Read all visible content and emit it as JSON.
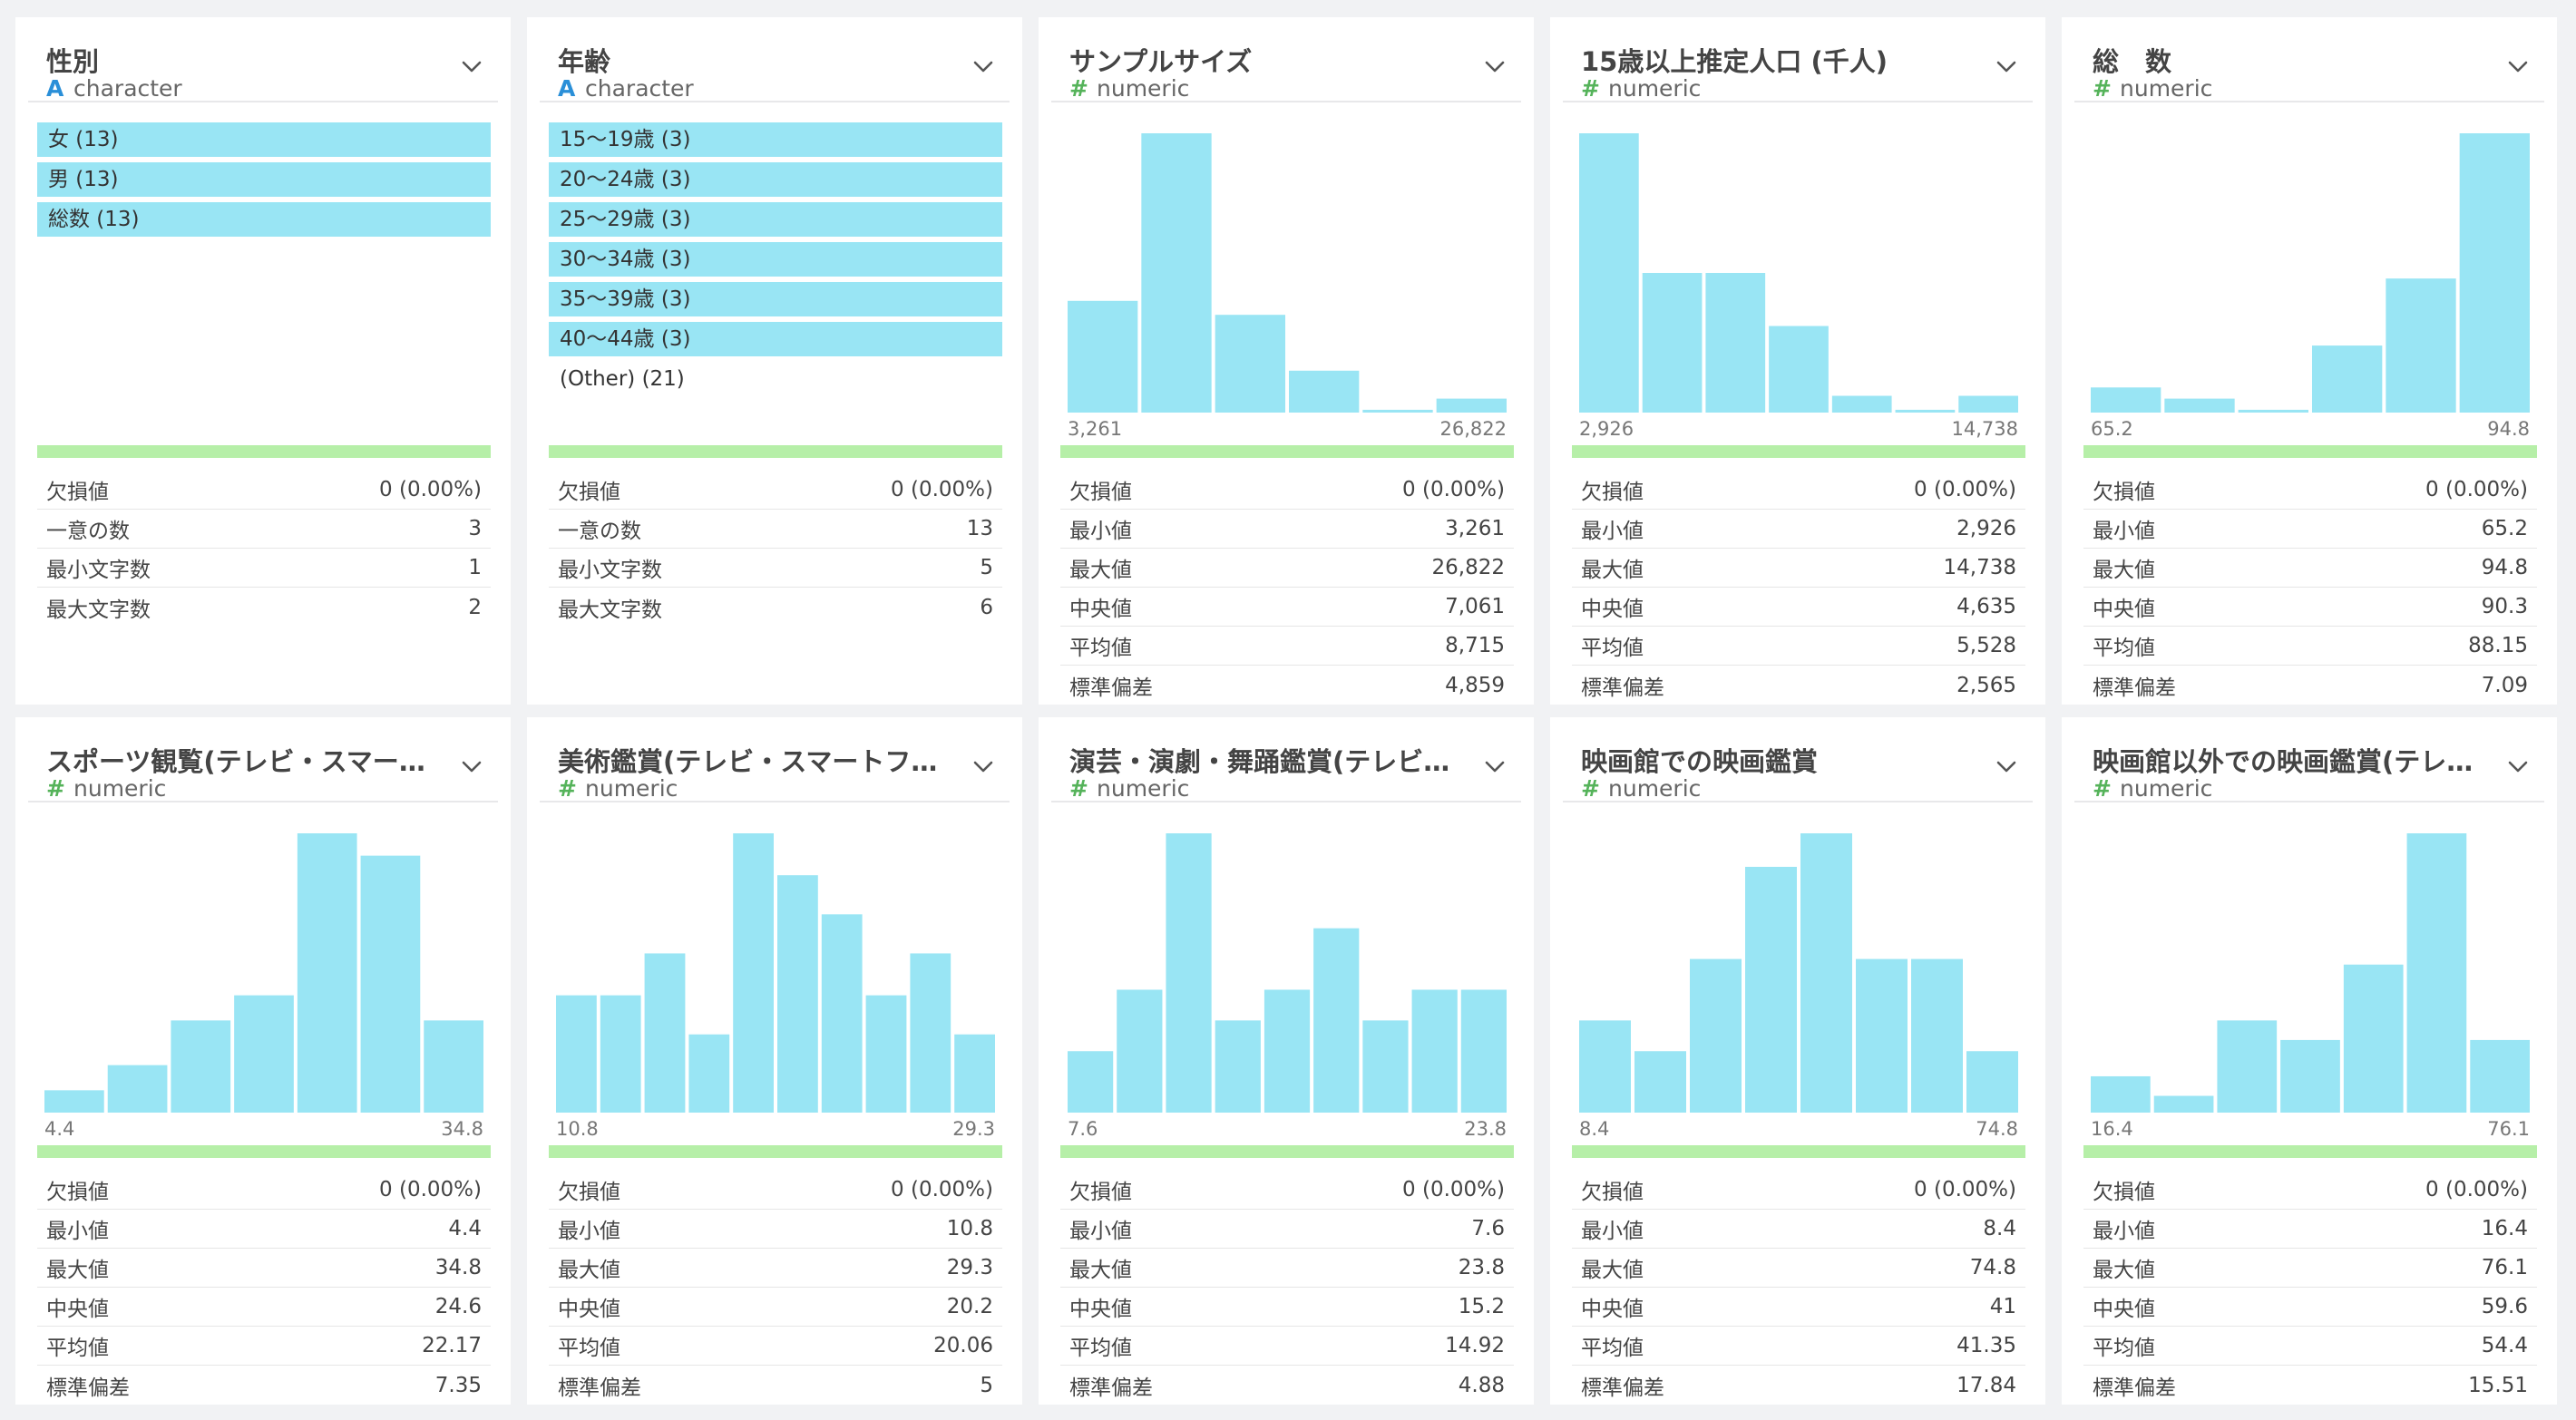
{
  "stat_labels": {
    "missing": "欠損値",
    "unique": "一意の数",
    "min_len": "最小文字数",
    "max_len": "最大文字数",
    "min": "最小値",
    "max": "最大値",
    "median": "中央値",
    "mean": "平均値",
    "stdev": "標準偏差"
  },
  "colors": {
    "bar": "#99e5f4",
    "valid": "#b6efa8",
    "char_icon": "#2a8fd8",
    "num_icon": "#55b35a"
  },
  "columns": [
    {
      "title": "性別",
      "type": "character",
      "type_icon": "A",
      "categories": [
        {
          "label": "女 (13)",
          "highlighted": true
        },
        {
          "label": "男 (13)",
          "highlighted": true
        },
        {
          "label": "総数 (13)",
          "highlighted": true
        }
      ],
      "stats": [
        [
          "missing",
          "0 (0.00%)"
        ],
        [
          "unique",
          "3"
        ],
        [
          "min_len",
          "1"
        ],
        [
          "max_len",
          "2"
        ]
      ]
    },
    {
      "title": "年齢",
      "type": "character",
      "type_icon": "A",
      "categories": [
        {
          "label": "15〜19歳 (3)",
          "highlighted": true
        },
        {
          "label": "20〜24歳 (3)",
          "highlighted": true
        },
        {
          "label": "25〜29歳 (3)",
          "highlighted": true
        },
        {
          "label": "30〜34歳 (3)",
          "highlighted": true
        },
        {
          "label": "35〜39歳 (3)",
          "highlighted": true
        },
        {
          "label": "40〜44歳 (3)",
          "highlighted": true
        },
        {
          "label": "(Other) (21)",
          "highlighted": false
        }
      ],
      "stats": [
        [
          "missing",
          "0 (0.00%)"
        ],
        [
          "unique",
          "13"
        ],
        [
          "min_len",
          "5"
        ],
        [
          "max_len",
          "6"
        ]
      ]
    },
    {
      "title": "サンプルサイズ",
      "type": "numeric",
      "type_icon": "#",
      "hist": [
        40,
        100,
        35,
        15,
        1,
        5
      ],
      "hist_min": "3,261",
      "hist_max": "26,822",
      "stats": [
        [
          "missing",
          "0 (0.00%)"
        ],
        [
          "min",
          "3,261"
        ],
        [
          "max",
          "26,822"
        ],
        [
          "median",
          "7,061"
        ],
        [
          "mean",
          "8,715"
        ],
        [
          "stdev",
          "4,859"
        ]
      ]
    },
    {
      "title": "15歳以上推定人口 (千人)",
      "type": "numeric",
      "type_icon": "#",
      "hist": [
        100,
        50,
        50,
        31,
        6,
        1,
        6
      ],
      "hist_min": "2,926",
      "hist_max": "14,738",
      "stats": [
        [
          "missing",
          "0 (0.00%)"
        ],
        [
          "min",
          "2,926"
        ],
        [
          "max",
          "14,738"
        ],
        [
          "median",
          "4,635"
        ],
        [
          "mean",
          "5,528"
        ],
        [
          "stdev",
          "2,565"
        ]
      ]
    },
    {
      "title": "総　数",
      "type": "numeric",
      "type_icon": "#",
      "hist": [
        9,
        5,
        1,
        24,
        48,
        100
      ],
      "hist_min": "65.2",
      "hist_max": "94.8",
      "stats": [
        [
          "missing",
          "0 (0.00%)"
        ],
        [
          "min",
          "65.2"
        ],
        [
          "max",
          "94.8"
        ],
        [
          "median",
          "90.3"
        ],
        [
          "mean",
          "88.15"
        ],
        [
          "stdev",
          "7.09"
        ]
      ]
    },
    {
      "title": "スポーツ観覧(テレビ・スマートフォン・パソコンなどは除く)",
      "type": "numeric",
      "type_icon": "#",
      "hist": [
        8,
        17,
        33,
        42,
        100,
        92,
        33
      ],
      "hist_min": "4.4",
      "hist_max": "34.8",
      "stats": [
        [
          "missing",
          "0 (0.00%)"
        ],
        [
          "min",
          "4.4"
        ],
        [
          "max",
          "34.8"
        ],
        [
          "median",
          "24.6"
        ],
        [
          "mean",
          "22.17"
        ],
        [
          "stdev",
          "7.35"
        ]
      ]
    },
    {
      "title": "美術鑑賞(テレビ・スマートフォン・パソコンなどは除く)",
      "type": "numeric",
      "type_icon": "#",
      "hist": [
        42,
        42,
        57,
        28,
        100,
        85,
        71,
        42,
        57,
        28
      ],
      "hist_min": "10.8",
      "hist_max": "29.3",
      "stats": [
        [
          "missing",
          "0 (0.00%)"
        ],
        [
          "min",
          "10.8"
        ],
        [
          "max",
          "29.3"
        ],
        [
          "median",
          "20.2"
        ],
        [
          "mean",
          "20.06"
        ],
        [
          "stdev",
          "5"
        ]
      ]
    },
    {
      "title": "演芸・演劇・舞踊鑑賞(テレビ・スマートフォン・パソコンなどは除く)",
      "type": "numeric",
      "type_icon": "#",
      "hist": [
        22,
        44,
        100,
        33,
        44,
        66,
        33,
        44,
        44
      ],
      "hist_min": "7.6",
      "hist_max": "23.8",
      "stats": [
        [
          "missing",
          "0 (0.00%)"
        ],
        [
          "min",
          "7.6"
        ],
        [
          "max",
          "23.8"
        ],
        [
          "median",
          "15.2"
        ],
        [
          "mean",
          "14.92"
        ],
        [
          "stdev",
          "4.88"
        ]
      ]
    },
    {
      "title": "映画館での映画鑑賞",
      "type": "numeric",
      "type_icon": "#",
      "hist": [
        33,
        22,
        55,
        88,
        100,
        55,
        55,
        22
      ],
      "hist_min": "8.4",
      "hist_max": "74.8",
      "stats": [
        [
          "missing",
          "0 (0.00%)"
        ],
        [
          "min",
          "8.4"
        ],
        [
          "max",
          "74.8"
        ],
        [
          "median",
          "41"
        ],
        [
          "mean",
          "41.35"
        ],
        [
          "stdev",
          "17.84"
        ]
      ]
    },
    {
      "title": "映画館以外での映画鑑賞(テレビ・スマートフォン・パソコンなど)",
      "type": "numeric",
      "type_icon": "#",
      "hist": [
        13,
        6,
        33,
        26,
        53,
        100,
        26
      ],
      "hist_min": "16.4",
      "hist_max": "76.1",
      "stats": [
        [
          "missing",
          "0 (0.00%)"
        ],
        [
          "min",
          "16.4"
        ],
        [
          "max",
          "76.1"
        ],
        [
          "median",
          "59.6"
        ],
        [
          "mean",
          "54.4"
        ],
        [
          "stdev",
          "15.51"
        ]
      ]
    }
  ]
}
